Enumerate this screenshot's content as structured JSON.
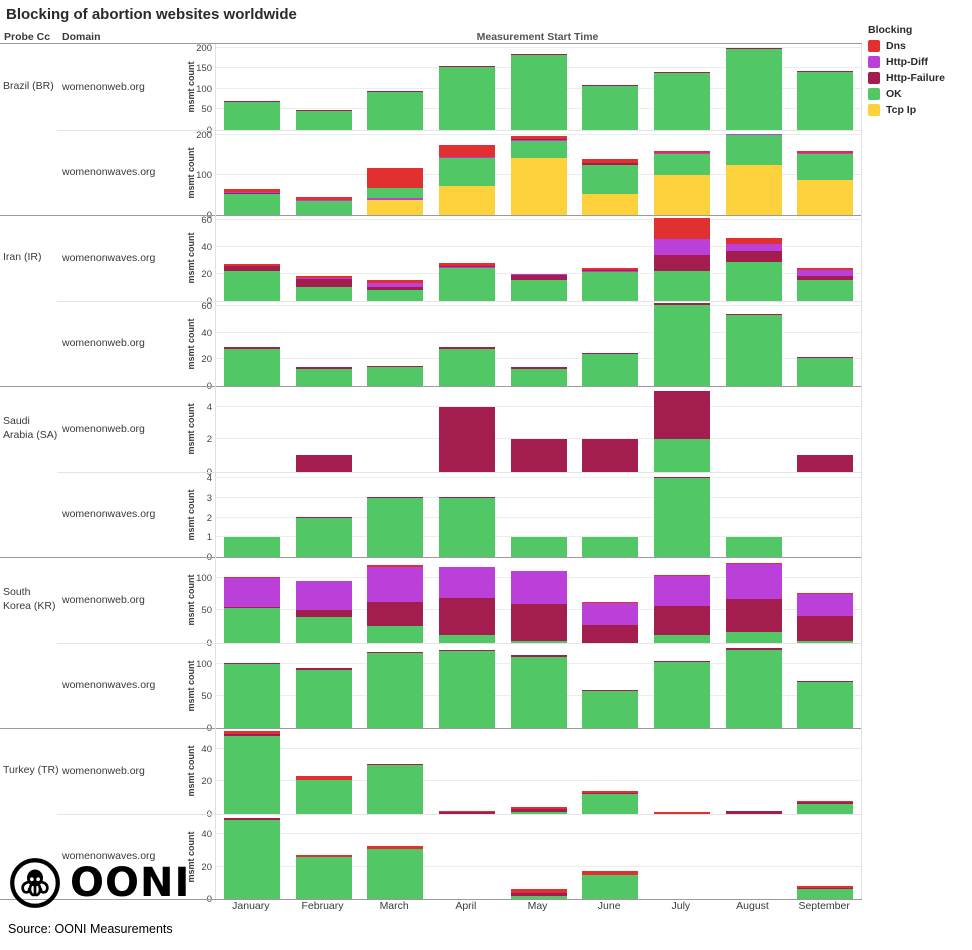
{
  "title": "Blocking of abortion websites worldwide",
  "header": {
    "probe_cc": "Probe Cc",
    "domain": "Domain",
    "x_title": "Measurement Start Time"
  },
  "legend": {
    "title": "Blocking",
    "items": [
      {
        "key": "dns",
        "label": "Dns",
        "color": "#e03030"
      },
      {
        "key": "httpdiff",
        "label": "Http-Diff",
        "color": "#bb3fd9"
      },
      {
        "key": "httpfail",
        "label": "Http-Failure",
        "color": "#a31d4e"
      },
      {
        "key": "ok",
        "label": "OK",
        "color": "#52c766"
      },
      {
        "key": "tcp",
        "label": "Tcp Ip",
        "color": "#fcd13b"
      }
    ]
  },
  "footer": {
    "logo_text": "OONI",
    "source": "Source: OONI Measurements"
  },
  "chart_data": {
    "type": "bar",
    "stacked": true,
    "ylabel": "msmt count",
    "grid": true,
    "legend_position": "top-right",
    "categories": [
      "January",
      "February",
      "March",
      "April",
      "May",
      "June",
      "July",
      "August",
      "September"
    ],
    "facets": [
      {
        "country": "Brazil (BR)",
        "domain": "womenonweb.org",
        "yticks": [
          0,
          50,
          100,
          150,
          200
        ],
        "ymax": 210,
        "bars": [
          [
            [
              "ok",
              67
            ],
            [
              "httpfail",
              2
            ]
          ],
          [
            [
              "ok",
              45
            ],
            [
              "httpfail",
              2
            ]
          ],
          [
            [
              "ok",
              92
            ],
            [
              "httpfail",
              3
            ]
          ],
          [
            [
              "ok",
              154
            ],
            [
              "httpfail",
              2
            ]
          ],
          [
            [
              "ok",
              182
            ],
            [
              "httpfail",
              3
            ]
          ],
          [
            [
              "ok",
              107
            ],
            [
              "httpfail",
              3
            ]
          ],
          [
            [
              "ok",
              139
            ],
            [
              "httpfail",
              2
            ]
          ],
          [
            [
              "ok",
              197
            ],
            [
              "httpfail",
              3
            ]
          ],
          [
            [
              "ok",
              141
            ],
            [
              "httpfail",
              2
            ]
          ]
        ]
      },
      {
        "country": "",
        "domain": "womenonwaves.org",
        "yticks": [
          0,
          100,
          200
        ],
        "ymax": 215,
        "bars": [
          [
            [
              "ok",
              52
            ],
            [
              "httpfail",
              2
            ],
            [
              "httpdiff",
              2
            ],
            [
              "dns",
              7
            ]
          ],
          [
            [
              "ok",
              35
            ],
            [
              "httpdiff",
              3
            ],
            [
              "dns",
              8
            ]
          ],
          [
            [
              "tcp",
              38
            ],
            [
              "httpdiff",
              4
            ],
            [
              "ok",
              25
            ],
            [
              "dns",
              51
            ]
          ],
          [
            [
              "tcp",
              73
            ],
            [
              "ok",
              70
            ],
            [
              "httpdiff",
              3
            ],
            [
              "dns",
              29
            ]
          ],
          [
            [
              "tcp",
              143
            ],
            [
              "ok",
              42
            ],
            [
              "httpdiff",
              4
            ],
            [
              "httpfail",
              3
            ],
            [
              "dns",
              6
            ]
          ],
          [
            [
              "tcp",
              52
            ],
            [
              "ok",
              75
            ],
            [
              "httpfail",
              4
            ],
            [
              "dns",
              9
            ]
          ],
          [
            [
              "tcp",
              101
            ],
            [
              "ok",
              52
            ],
            [
              "httpdiff",
              4
            ],
            [
              "dns",
              5
            ]
          ],
          [
            [
              "tcp",
              125
            ],
            [
              "ok",
              76
            ],
            [
              "httpdiff",
              3
            ]
          ],
          [
            [
              "tcp",
              87
            ],
            [
              "ok",
              66
            ],
            [
              "httpdiff",
              3
            ],
            [
              "dns",
              4
            ]
          ]
        ]
      },
      {
        "country": "Iran (IR)",
        "domain": "womenonwaves.org",
        "yticks": [
          0,
          20,
          40,
          60
        ],
        "ymax": 64,
        "bars": [
          [
            [
              "ok",
              22
            ],
            [
              "httpfail",
              4
            ],
            [
              "dns",
              1
            ]
          ],
          [
            [
              "ok",
              10
            ],
            [
              "httpfail",
              6
            ],
            [
              "httpdiff",
              1
            ],
            [
              "dns",
              1
            ]
          ],
          [
            [
              "ok",
              8
            ],
            [
              "httpfail",
              2
            ],
            [
              "httpdiff",
              3
            ],
            [
              "dns",
              2
            ]
          ],
          [
            [
              "ok",
              24
            ],
            [
              "httpdiff",
              1
            ],
            [
              "httpfail",
              1
            ],
            [
              "dns",
              2
            ]
          ],
          [
            [
              "ok",
              15
            ],
            [
              "httpfail",
              4
            ],
            [
              "httpdiff",
              1
            ]
          ],
          [
            [
              "ok",
              21
            ],
            [
              "httpdiff",
              1
            ],
            [
              "httpfail",
              1
            ],
            [
              "dns",
              1
            ]
          ],
          [
            [
              "ok",
              22
            ],
            [
              "httpfail",
              12
            ],
            [
              "httpdiff",
              12
            ],
            [
              "dns",
              16
            ]
          ],
          [
            [
              "ok",
              29
            ],
            [
              "httpfail",
              8
            ],
            [
              "httpdiff",
              5
            ],
            [
              "dns",
              5
            ]
          ],
          [
            [
              "ok",
              15
            ],
            [
              "httpfail",
              3
            ],
            [
              "httpdiff",
              5
            ],
            [
              "dns",
              1
            ]
          ]
        ]
      },
      {
        "country": "",
        "domain": "womenonweb.org",
        "yticks": [
          0,
          20,
          40,
          60
        ],
        "ymax": 64,
        "bars": [
          [
            [
              "ok",
              28
            ],
            [
              "httpfail",
              1
            ]
          ],
          [
            [
              "ok",
              13
            ],
            [
              "httpfail",
              1
            ]
          ],
          [
            [
              "ok",
              14
            ],
            [
              "httpfail",
              1
            ]
          ],
          [
            [
              "ok",
              28
            ],
            [
              "httpfail",
              1
            ]
          ],
          [
            [
              "ok",
              13
            ],
            [
              "httpfail",
              1
            ]
          ],
          [
            [
              "ok",
              24
            ],
            [
              "httpfail",
              1
            ]
          ],
          [
            [
              "ok",
              61
            ],
            [
              "httpfail",
              1
            ]
          ],
          [
            [
              "ok",
              53
            ],
            [
              "httpfail",
              1
            ]
          ],
          [
            [
              "ok",
              21
            ],
            [
              "httpfail",
              1
            ]
          ]
        ]
      },
      {
        "country": "Saudi Arabia (SA)",
        "domain": "womenonweb.org",
        "yticks": [
          0,
          2,
          4
        ],
        "ymax": 5.3,
        "bars": [
          [],
          [
            [
              "httpfail",
              1
            ]
          ],
          [],
          [
            [
              "httpfail",
              4
            ]
          ],
          [
            [
              "httpfail",
              2
            ]
          ],
          [
            [
              "httpfail",
              2
            ]
          ],
          [
            [
              "ok",
              2
            ],
            [
              "httpfail",
              3
            ]
          ],
          [],
          [
            [
              "httpfail",
              1
            ]
          ]
        ]
      },
      {
        "country": "",
        "domain": "womenonwaves.org",
        "yticks": [
          0,
          1,
          2,
          3,
          4
        ],
        "ymax": 4.35,
        "bars": [
          [
            [
              "ok",
              1
            ]
          ],
          [
            [
              "ok",
              2
            ],
            [
              "httpfail",
              0.06
            ]
          ],
          [
            [
              "ok",
              3
            ],
            [
              "httpfail",
              0.06
            ]
          ],
          [
            [
              "ok",
              3
            ],
            [
              "httpfail",
              0.06
            ]
          ],
          [
            [
              "ok",
              1
            ]
          ],
          [
            [
              "ok",
              1
            ]
          ],
          [
            [
              "ok",
              4
            ],
            [
              "httpfail",
              0.06
            ]
          ],
          [
            [
              "ok",
              1
            ]
          ],
          []
        ]
      },
      {
        "country": "South Korea (KR)",
        "domain": "womenonweb.org",
        "yticks": [
          0,
          50,
          100
        ],
        "ymax": 133,
        "bars": [
          [
            [
              "ok",
              54
            ],
            [
              "httpfail",
              1
            ],
            [
              "httpdiff",
              44
            ],
            [
              "dns",
              1
            ]
          ],
          [
            [
              "ok",
              40
            ],
            [
              "httpfail",
              10
            ],
            [
              "httpdiff",
              46
            ]
          ],
          [
            [
              "ok",
              25
            ],
            [
              "httpfail",
              38
            ],
            [
              "httpdiff",
              55
            ],
            [
              "dns",
              2
            ]
          ],
          [
            [
              "ok",
              12
            ],
            [
              "httpfail",
              57
            ],
            [
              "httpdiff",
              48
            ]
          ],
          [
            [
              "ok",
              3
            ],
            [
              "httpfail",
              57
            ],
            [
              "httpdiff",
              52
            ]
          ],
          [
            [
              "httpfail",
              28
            ],
            [
              "httpdiff",
              33
            ],
            [
              "dns",
              1
            ]
          ],
          [
            [
              "ok",
              11
            ],
            [
              "httpfail",
              46
            ],
            [
              "httpdiff",
              46
            ],
            [
              "dns",
              1
            ]
          ],
          [
            [
              "ok",
              16
            ],
            [
              "httpfail",
              52
            ],
            [
              "httpdiff",
              54
            ],
            [
              "dns",
              2
            ]
          ],
          [
            [
              "ok",
              2
            ],
            [
              "httpfail",
              39
            ],
            [
              "httpdiff",
              34
            ],
            [
              "dns",
              1
            ]
          ]
        ]
      },
      {
        "country": "",
        "domain": "womenonwaves.org",
        "yticks": [
          0,
          50,
          100
        ],
        "ymax": 133,
        "bars": [
          [
            [
              "ok",
              99
            ],
            [
              "httpfail",
              2
            ]
          ],
          [
            [
              "ok",
              91
            ],
            [
              "httpfail",
              1
            ]
          ],
          [
            [
              "ok",
              116
            ],
            [
              "httpfail",
              2
            ]
          ],
          [
            [
              "ok",
              120
            ],
            [
              "httpfail",
              2
            ]
          ],
          [
            [
              "ok",
              111
            ],
            [
              "httpfail",
              2
            ]
          ],
          [
            [
              "ok",
              57
            ],
            [
              "httpfail",
              2
            ]
          ],
          [
            [
              "ok",
              103
            ],
            [
              "httpfail",
              2
            ]
          ],
          [
            [
              "ok",
              122
            ],
            [
              "httpfail",
              2
            ]
          ],
          [
            [
              "ok",
              71
            ],
            [
              "httpfail",
              2
            ]
          ]
        ]
      },
      {
        "country": "Turkey (TR)",
        "domain": "womenonweb.org",
        "yticks": [
          0,
          20,
          40
        ],
        "ymax": 53,
        "bars": [
          [
            [
              "ok",
              48
            ],
            [
              "httpfail",
              1
            ],
            [
              "dns",
              2
            ]
          ],
          [
            [
              "ok",
              21
            ],
            [
              "dns",
              2
            ]
          ],
          [
            [
              "ok",
              30
            ],
            [
              "httpfail",
              1
            ]
          ],
          [
            [
              "httpfail",
              0.5
            ],
            [
              "dns",
              0.5
            ]
          ],
          [
            [
              "ok",
              1
            ],
            [
              "httpfail",
              2
            ],
            [
              "dns",
              1
            ]
          ],
          [
            [
              "ok",
              12
            ],
            [
              "httpfail",
              1
            ],
            [
              "dns",
              1
            ]
          ],
          [
            [
              "dns",
              1
            ]
          ],
          [
            [
              "httpfail",
              1.5
            ]
          ],
          [
            [
              "ok",
              6
            ],
            [
              "httpfail",
              1
            ],
            [
              "dns",
              1
            ]
          ]
        ]
      },
      {
        "country": "",
        "domain": "womenonwaves.org",
        "yticks": [
          0,
          20,
          40
        ],
        "ymax": 53,
        "bars": [
          [
            [
              "ok",
              49
            ],
            [
              "httpfail",
              1
            ]
          ],
          [
            [
              "ok",
              26
            ],
            [
              "dns",
              1
            ]
          ],
          [
            [
              "ok",
              31
            ],
            [
              "dns",
              2
            ]
          ],
          [],
          [
            [
              "ok",
              2
            ],
            [
              "httpfail",
              2
            ],
            [
              "dns",
              2
            ]
          ],
          [
            [
              "ok",
              15
            ],
            [
              "dns",
              2.5
            ]
          ],
          [],
          [],
          [
            [
              "ok",
              6
            ],
            [
              "httpfail",
              1
            ],
            [
              "dns",
              1
            ]
          ]
        ]
      }
    ]
  }
}
